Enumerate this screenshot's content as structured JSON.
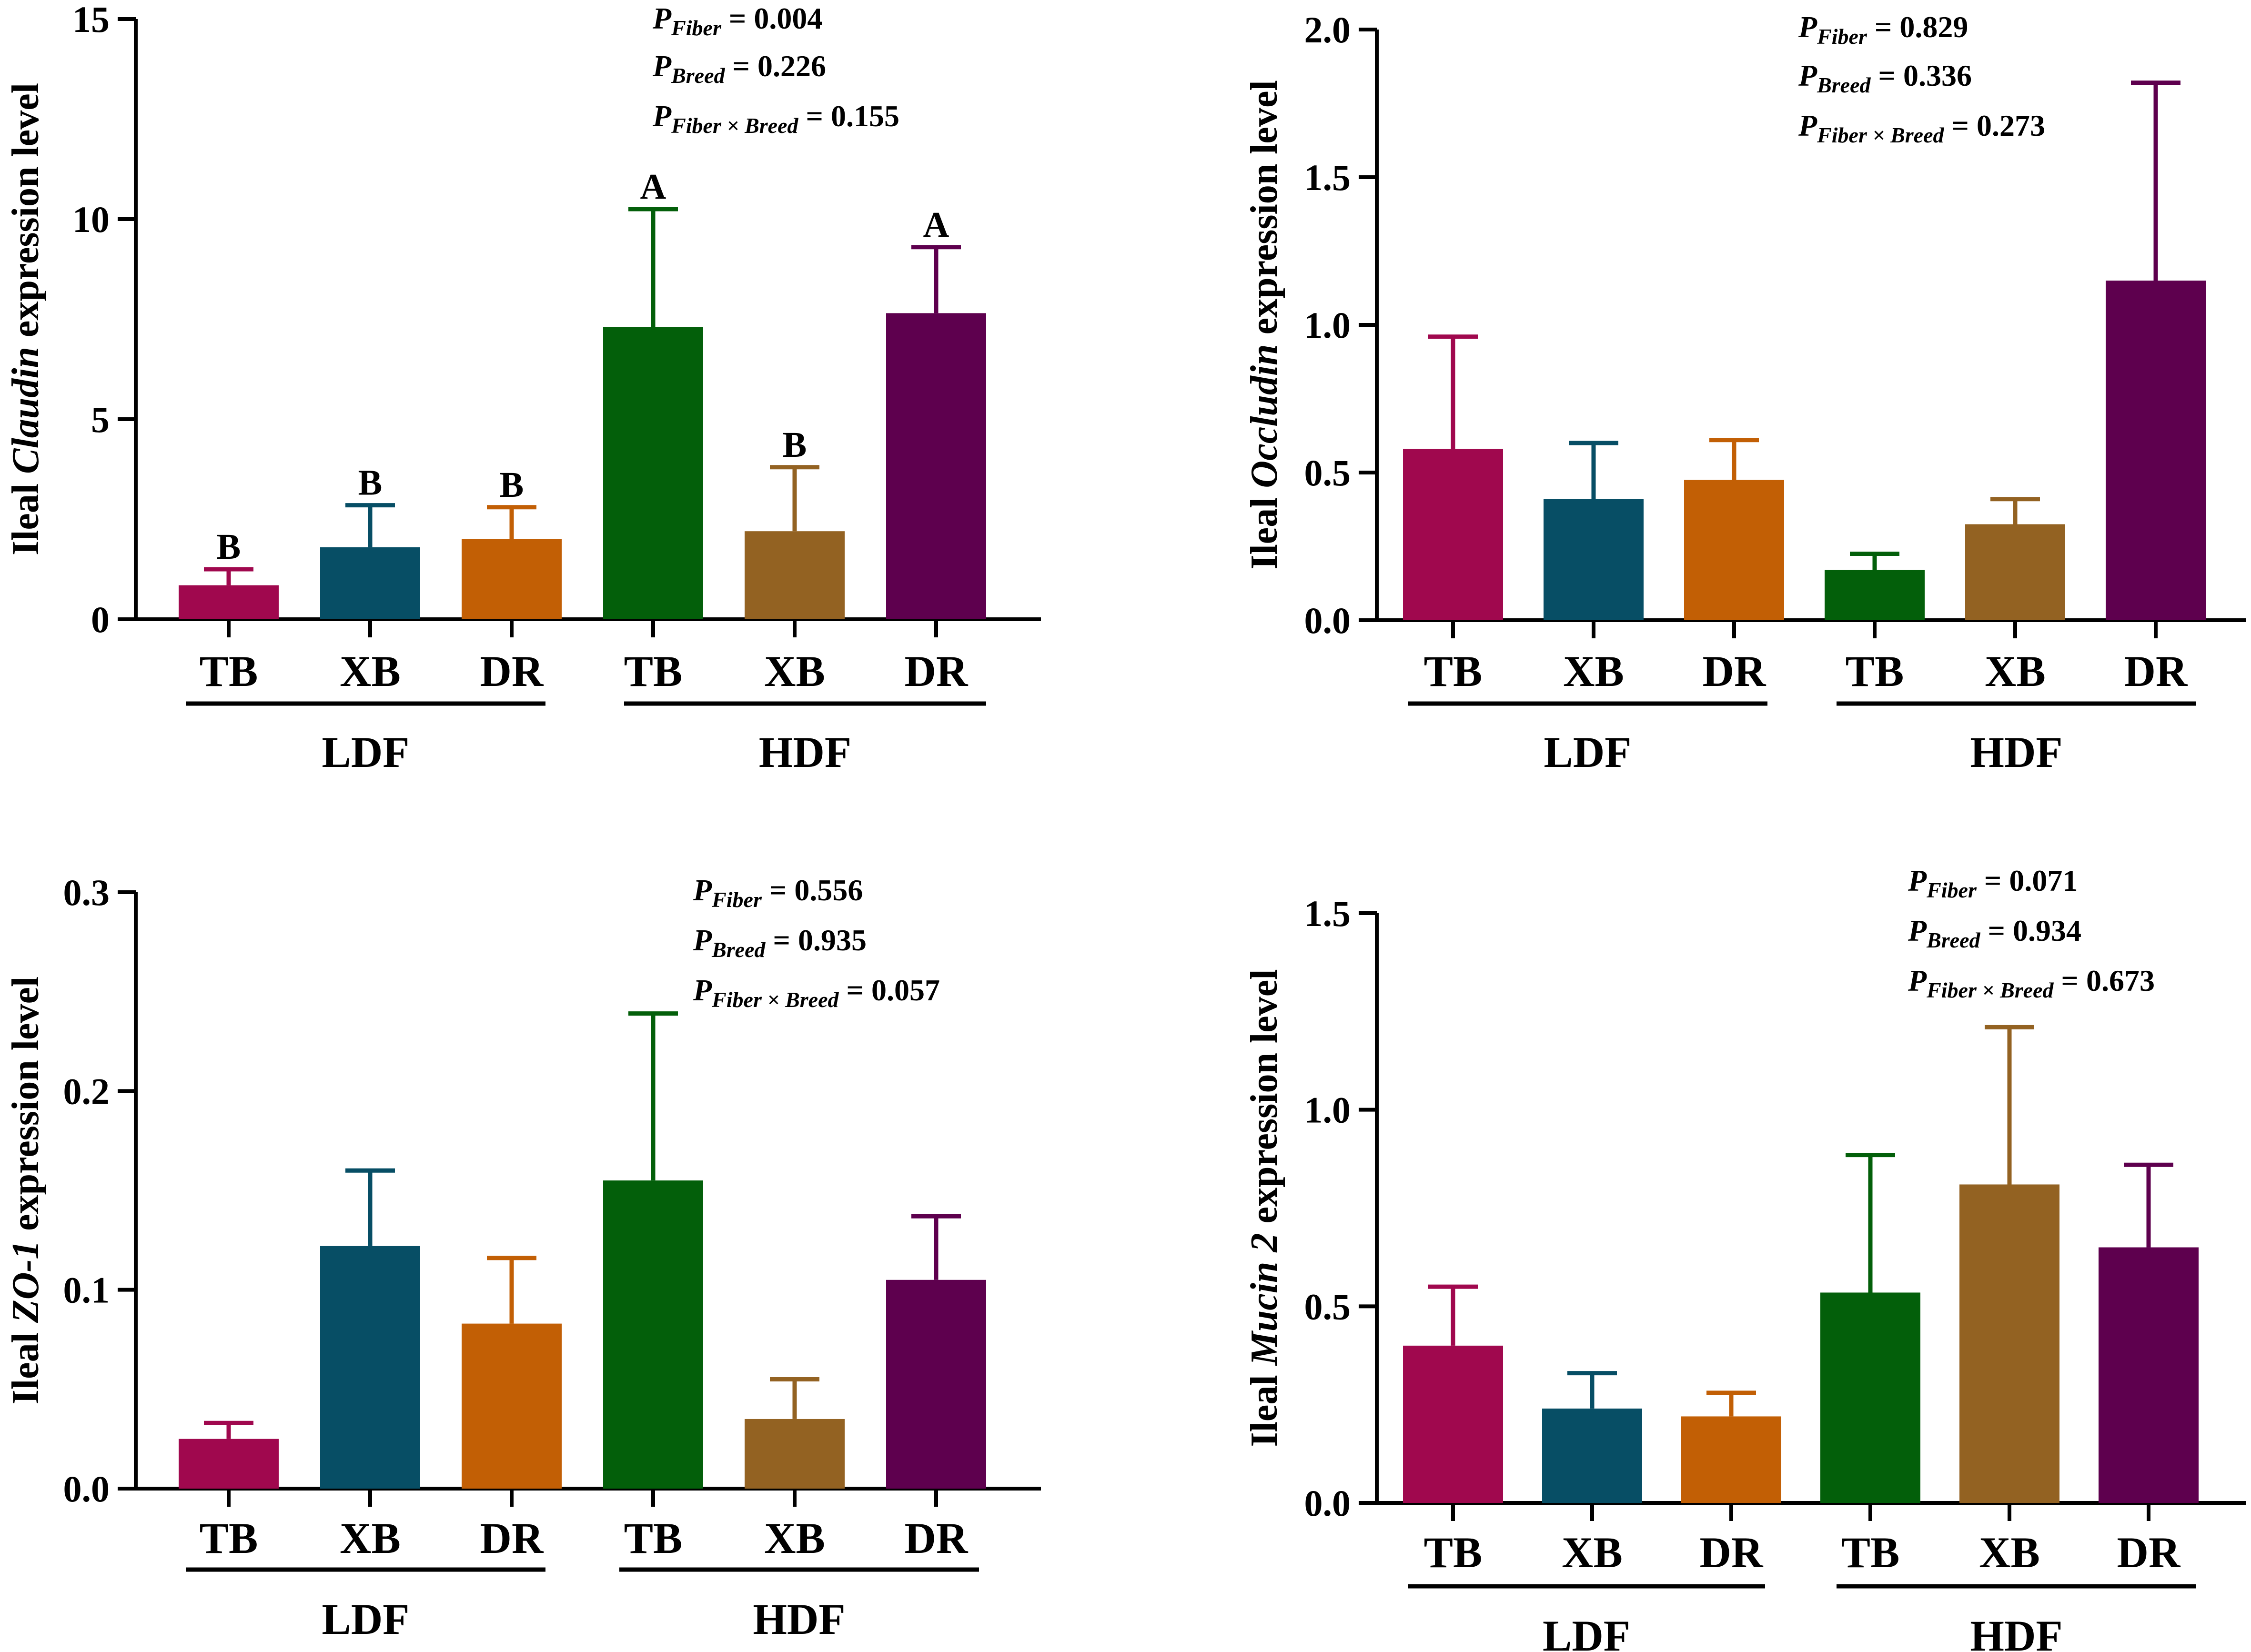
{
  "colors": {
    "TB_LDF": "#a0084e",
    "XB_LDF": "#074e65",
    "DR_LDF": "#c25f05",
    "TB_HDF": "#035f0a",
    "XB_HDF": "#936222",
    "DR_HDF": "#5e004e",
    "axis": "#000000"
  },
  "chart_data": [
    {
      "id": "claudin",
      "type": "bar",
      "ylabel": {
        "prefix": "Ileal ",
        "gene": "Claudin",
        "suffix": " expression level"
      },
      "ylim": [
        0,
        15
      ],
      "yticks": [
        0,
        5,
        10,
        15
      ],
      "tick_labels": [
        "0",
        "5",
        "10",
        "15"
      ],
      "categories": [
        "TB",
        "XB",
        "DR",
        "TB",
        "XB",
        "DR"
      ],
      "groups": [
        {
          "label": "LDF"
        },
        {
          "label": "HDF"
        }
      ],
      "values": [
        0.85,
        1.8,
        2.0,
        7.3,
        2.2,
        7.65
      ],
      "errors": [
        0.4,
        1.05,
        0.8,
        2.95,
        1.6,
        1.65
      ],
      "letters": [
        "B",
        "B",
        "B",
        "A",
        "B",
        "A"
      ],
      "pvalues": [
        {
          "sub": "Fiber",
          "value": " = 0.004"
        },
        {
          "sub": "Breed",
          "value": " = 0.226"
        },
        {
          "sub": "Fiber × Breed",
          "value": " = 0.155"
        }
      ]
    },
    {
      "id": "occludin",
      "type": "bar",
      "ylabel": {
        "prefix": "Ileal ",
        "gene": "Occludin",
        "suffix": " expression level"
      },
      "ylim": [
        0,
        2.0
      ],
      "yticks": [
        0,
        0.5,
        1.0,
        1.5,
        2.0
      ],
      "tick_labels": [
        "0.0",
        "0.5",
        "1.0",
        "1.5",
        "2.0"
      ],
      "categories": [
        "TB",
        "XB",
        "DR",
        "TB",
        "XB",
        "DR"
      ],
      "groups": [
        {
          "label": "LDF"
        },
        {
          "label": "HDF"
        }
      ],
      "values": [
        0.58,
        0.41,
        0.475,
        0.17,
        0.325,
        1.15
      ],
      "errors": [
        0.38,
        0.19,
        0.135,
        0.055,
        0.085,
        0.67
      ],
      "letters": [
        "",
        "",
        "",
        "",
        "",
        ""
      ],
      "pvalues": [
        {
          "sub": "Fiber",
          "value": " = 0.829"
        },
        {
          "sub": "Breed",
          "value": " = 0.336"
        },
        {
          "sub": "Fiber × Breed",
          "value": " = 0.273"
        }
      ]
    },
    {
      "id": "zo1",
      "type": "bar",
      "ylabel": {
        "prefix": "Ileal ",
        "gene": "ZO-1",
        "suffix": " expression level"
      },
      "ylim": [
        0,
        0.3
      ],
      "yticks": [
        0,
        0.1,
        0.2,
        0.3
      ],
      "tick_labels": [
        "0.0",
        "0.1",
        "0.2",
        "0.3"
      ],
      "categories": [
        "TB",
        "XB",
        "DR",
        "TB",
        "XB",
        "DR"
      ],
      "groups": [
        {
          "label": "LDF"
        },
        {
          "label": "HDF"
        }
      ],
      "values": [
        0.025,
        0.122,
        0.083,
        0.155,
        0.035,
        0.105
      ],
      "errors": [
        0.008,
        0.038,
        0.033,
        0.084,
        0.02,
        0.032
      ],
      "letters": [
        "",
        "",
        "",
        "",
        "",
        ""
      ],
      "pvalues": [
        {
          "sub": "Fiber",
          "value": " = 0.556"
        },
        {
          "sub": "Breed",
          "value": " = 0.935"
        },
        {
          "sub": "Fiber × Breed",
          "value": " = 0.057"
        }
      ]
    },
    {
      "id": "mucin2",
      "type": "bar",
      "ylabel": {
        "prefix": "Ileal ",
        "gene": "Mucin 2",
        "suffix": " expression level"
      },
      "ylim": [
        0,
        1.5
      ],
      "yticks": [
        0,
        0.5,
        1.0,
        1.5
      ],
      "tick_labels": [
        "0.0",
        "0.5",
        "1.0",
        "1.5"
      ],
      "categories": [
        "TB",
        "XB",
        "DR",
        "TB",
        "XB",
        "DR"
      ],
      "groups": [
        {
          "label": "LDF"
        },
        {
          "label": "HDF"
        }
      ],
      "values": [
        0.4,
        0.24,
        0.22,
        0.535,
        0.81,
        0.65
      ],
      "errors": [
        0.15,
        0.09,
        0.06,
        0.35,
        0.4,
        0.21
      ],
      "letters": [
        "",
        "",
        "",
        "",
        "",
        ""
      ],
      "pvalues": [
        {
          "sub": "Fiber",
          "value": " = 0.071"
        },
        {
          "sub": "Breed",
          "value": " = 0.934"
        },
        {
          "sub": "Fiber × Breed",
          "value": " = 0.673"
        }
      ]
    }
  ]
}
